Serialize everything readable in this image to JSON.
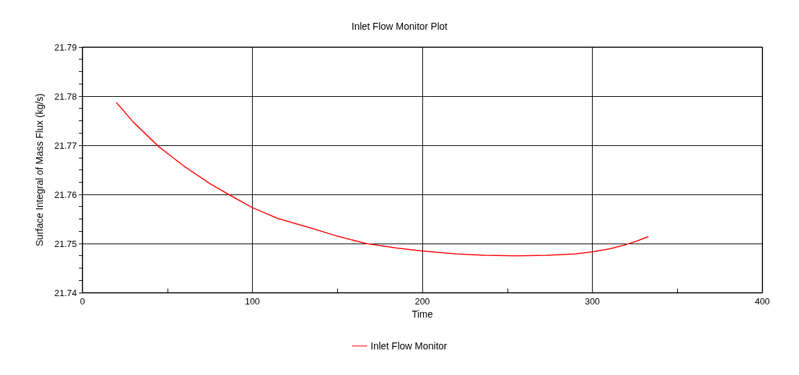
{
  "chart_data": {
    "type": "line",
    "title": "Inlet Flow Monitor Plot",
    "xlabel": "Time",
    "ylabel": "Surface Integral of Mass Flux (kg/s)",
    "series": [
      {
        "name": "Inlet Flow Monitor",
        "color": "#ff0000",
        "x": [
          20,
          30,
          45,
          60,
          75,
          86,
          100,
          115,
          135,
          150,
          167,
          185,
          200,
          220,
          237,
          255,
          273,
          290,
          300,
          310,
          318,
          326,
          333
        ],
        "values": [
          21.7787,
          21.7747,
          21.7697,
          21.7657,
          21.7622,
          21.76,
          21.7573,
          21.7551,
          21.7531,
          21.7515,
          21.75,
          21.7491,
          21.7485,
          21.7479,
          21.7476,
          21.7475,
          21.7476,
          21.7479,
          21.7483,
          21.7489,
          21.7496,
          21.7505,
          21.7514
        ]
      }
    ],
    "xlim": [
      0,
      400
    ],
    "xticks": [
      0,
      {
        "value": 50,
        "label": null
      },
      100,
      {
        "value": 150,
        "label": null
      },
      200,
      {
        "value": 250,
        "label": null
      },
      300,
      {
        "value": 350,
        "label": null
      },
      400
    ],
    "ylim": [
      21.74,
      21.79
    ],
    "yticks": [
      21.74,
      {
        "value": 21.7425,
        "label": null
      },
      {
        "value": 21.745,
        "label": null
      },
      {
        "value": 21.7475,
        "label": null
      },
      21.75,
      {
        "value": 21.7525,
        "label": null
      },
      {
        "value": 21.755,
        "label": null
      },
      {
        "value": 21.7575,
        "label": null
      },
      21.76,
      {
        "value": 21.7625,
        "label": null
      },
      {
        "value": 21.765,
        "label": null
      },
      {
        "value": 21.7675,
        "label": null
      },
      21.77,
      {
        "value": 21.7725,
        "label": null
      },
      {
        "value": 21.775,
        "label": null
      },
      {
        "value": 21.7775,
        "label": null
      },
      21.78,
      {
        "value": 21.7825,
        "label": null
      },
      {
        "value": 21.785,
        "label": null
      },
      {
        "value": 21.7875,
        "label": null
      },
      21.79
    ],
    "grid": true,
    "legend": "bottom",
    "marker": "none",
    "line_style": "solid"
  }
}
